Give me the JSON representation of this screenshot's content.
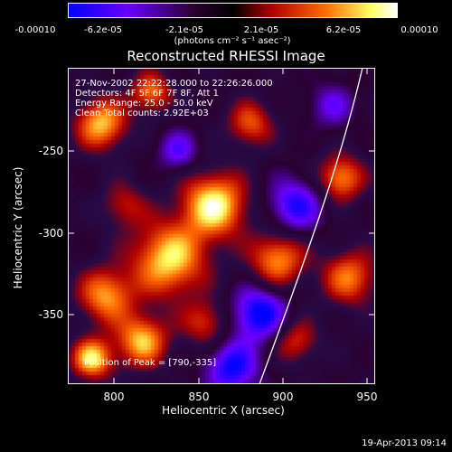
{
  "colorbar": {
    "ticks": [
      "-0.00010",
      "-6.2e-05",
      "-2.1e-05",
      "2.1e-05",
      "6.2e-05",
      "0.00010"
    ],
    "units": "(photons cm⁻² s⁻¹ asec⁻²)",
    "colors": [
      "#0000ff",
      "#6a00ff",
      "#2a0030",
      "#000000",
      "#b00000",
      "#ff6a00",
      "#ffff60",
      "#ffffff"
    ]
  },
  "title": "Reconstructed RHESSI Image",
  "annotations": {
    "time": "27-Nov-2002 22:22:28.000 to 22:26:26.000",
    "detectors": "Detectors: 4F 5F 6F 7F 8F, Att 1",
    "energy": "Energy Range: 25.0 - 50.0 keV",
    "method": "Clean    Total counts: 2.92E+03",
    "peak": "Position of Peak = [790,-335]"
  },
  "axes": {
    "xlabel": "Heliocentric X (arcsec)",
    "ylabel": "Heliocentric Y (arcsec)",
    "xticks": [
      "800",
      "850",
      "900",
      "950"
    ],
    "yticks": [
      "-250",
      "-300",
      "-350"
    ]
  },
  "footer": "19-Apr-2013 09:14"
}
